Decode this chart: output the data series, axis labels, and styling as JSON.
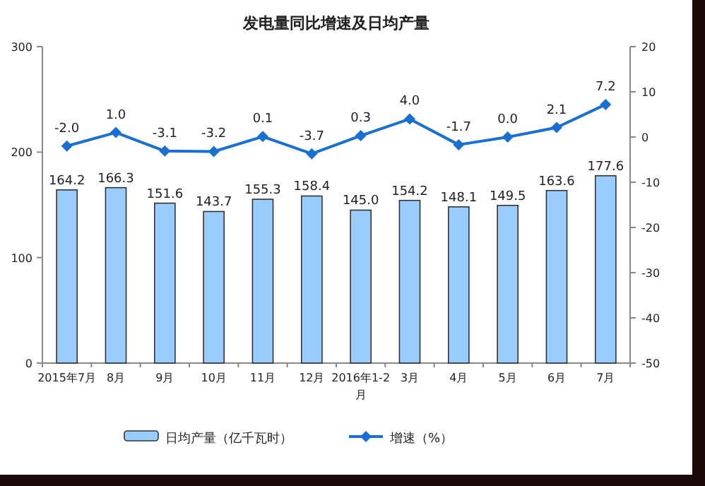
{
  "chart_data": {
    "type": "bar",
    "title": "发电量同比增速及日均产量",
    "categories": [
      "2015年7月",
      "8月",
      "9月",
      "10月",
      "11月",
      "12月",
      "2016年1-2月",
      "3月",
      "4月",
      "5月",
      "6月",
      "7月"
    ],
    "series": [
      {
        "name": "日均产量（亿千瓦时）",
        "color": "#99ccff",
        "values": [
          164.2,
          166.3,
          151.6,
          143.7,
          155.3,
          158.4,
          145.0,
          154.2,
          148.1,
          149.5,
          163.6,
          177.6
        ],
        "value_labels": [
          "164.2",
          "166.3",
          "151.6",
          "143.7",
          "155.3",
          "158.4",
          "145.0",
          "154.2",
          "148.1",
          "149.5",
          "163.6",
          "177.6"
        ]
      },
      {
        "name": "增速（%）",
        "type": "line",
        "axis": "y2",
        "color": "#1a6fd0",
        "marker": "diamond",
        "values": [
          -2.0,
          1.0,
          -3.1,
          -3.2,
          0.1,
          -3.7,
          0.3,
          4.0,
          -1.7,
          0.0,
          2.1,
          7.2
        ],
        "value_labels": [
          "-2.0",
          "1.0",
          "-3.1",
          "-3.2",
          "0.1",
          "-3.7",
          "0.3",
          "4.0",
          "-1.7",
          "0.0",
          "2.1",
          "7.2"
        ]
      }
    ],
    "ylim": [
      0,
      300
    ],
    "yticks": [
      0,
      100,
      200,
      300
    ],
    "y2lim": [
      -50,
      20
    ],
    "y2ticks": [
      -50,
      -40,
      -30,
      -20,
      -10,
      0,
      10,
      20
    ],
    "grid": false,
    "legend": "bottom"
  }
}
